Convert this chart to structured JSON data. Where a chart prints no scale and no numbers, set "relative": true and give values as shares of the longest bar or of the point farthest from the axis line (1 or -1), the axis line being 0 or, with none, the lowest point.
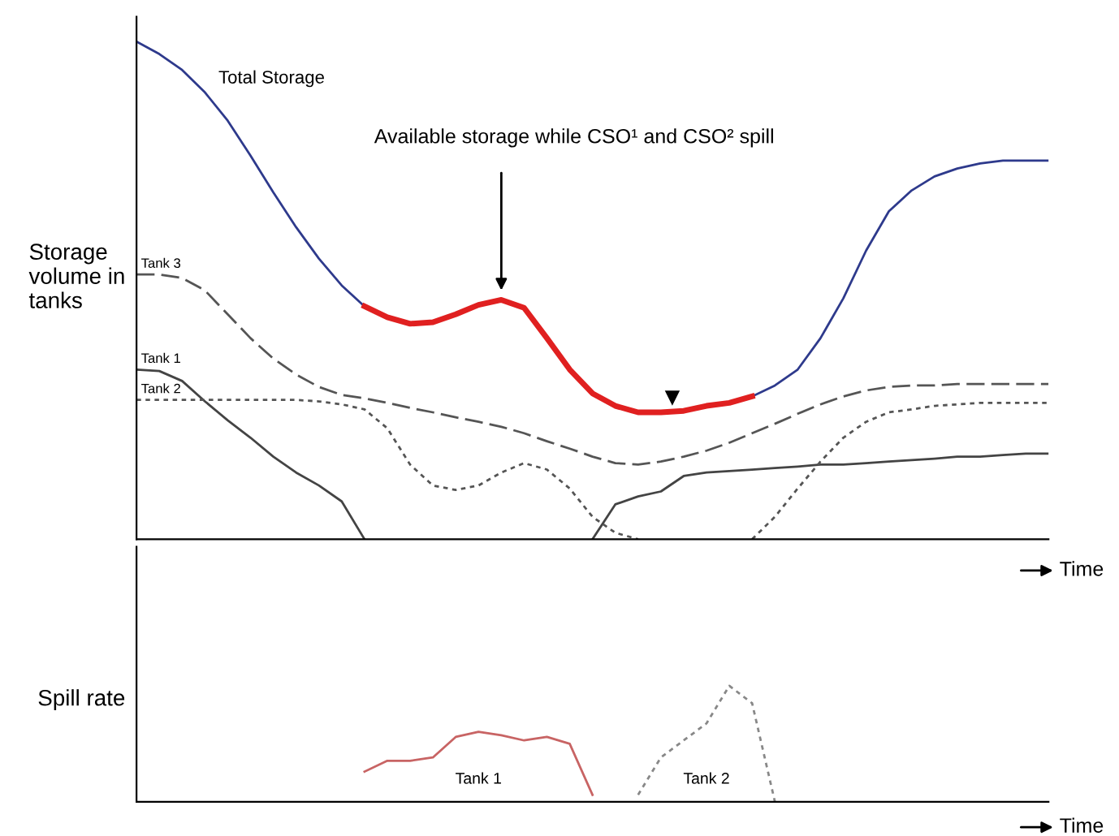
{
  "chart_data": [
    {
      "type": "line",
      "relative": true,
      "ylabel": "Storage volume in tanks",
      "xlabel": "Time",
      "legend": false,
      "grid": false,
      "annotations": [
        "Available storage while CSO¹ and CSO² spill"
      ],
      "categories": [
        null,
        null,
        null,
        null,
        null,
        null,
        null,
        null,
        null,
        null,
        null,
        null,
        null,
        null,
        null,
        null,
        null,
        null,
        null,
        null,
        null,
        null,
        null,
        null,
        null,
        null,
        null,
        null,
        null,
        null,
        null,
        null,
        null,
        null,
        null,
        null,
        null,
        null,
        null,
        null,
        null
      ],
      "series": [
        {
          "name": "Total Storage",
          "color": "#2e3a8c",
          "line_style": "solid",
          "values": [
            1.0,
            0.975,
            0.943,
            0.898,
            0.841,
            0.771,
            0.697,
            0.627,
            0.564,
            0.51,
            0.468,
            null,
            null,
            null,
            null,
            null,
            null,
            null,
            null,
            null,
            null,
            null,
            null,
            null,
            null,
            null,
            null,
            0.287,
            0.309,
            0.341,
            0.404,
            0.484,
            0.58,
            0.659,
            0.701,
            0.729,
            0.745,
            0.755,
            0.761,
            0.761,
            0.761
          ]
        },
        {
          "color": "#e02020",
          "line_style": "solid",
          "values": [
            null,
            null,
            null,
            null,
            null,
            null,
            null,
            null,
            null,
            null,
            0.468,
            0.446,
            0.433,
            0.436,
            0.452,
            0.471,
            0.481,
            0.465,
            0.404,
            0.341,
            0.293,
            0.268,
            0.255,
            0.255,
            0.258,
            0.268,
            0.274,
            0.287,
            null,
            null,
            null,
            null,
            null,
            null,
            null,
            null,
            null,
            null,
            null,
            null,
            null
          ]
        },
        {
          "name": "Tank 3",
          "color": "#555555",
          "line_style": "dashed",
          "values": [
            0.532,
            0.532,
            0.525,
            0.5,
            0.452,
            0.404,
            0.363,
            0.331,
            0.306,
            0.29,
            0.283,
            0.274,
            0.264,
            0.255,
            0.245,
            0.236,
            0.226,
            0.213,
            0.197,
            0.182,
            0.166,
            0.153,
            0.15,
            0.156,
            0.166,
            0.178,
            0.194,
            0.213,
            0.232,
            0.252,
            0.271,
            0.287,
            0.299,
            0.306,
            0.309,
            0.309,
            0.312,
            0.312,
            0.312,
            0.312,
            0.312
          ]
        },
        {
          "name": "Tank 1",
          "color": "#444444",
          "line_style": "solid",
          "values": [
            0.341,
            0.338,
            0.318,
            0.277,
            0.239,
            0.204,
            0.166,
            0.134,
            0.108,
            0.076,
            0.0,
            null,
            null,
            null,
            null,
            null,
            null,
            null,
            null,
            null,
            0.0,
            0.07,
            0.086,
            0.096,
            0.127,
            0.134,
            0.137,
            0.14,
            0.143,
            0.146,
            0.15,
            0.15,
            0.153,
            0.156,
            0.159,
            0.162,
            0.166,
            0.166,
            0.169,
            0.172,
            0.172
          ]
        },
        {
          "name": "Tank 2",
          "color": "#555555",
          "line_style": "dotted",
          "values": [
            0.28,
            0.28,
            0.28,
            0.28,
            0.28,
            0.28,
            0.28,
            0.28,
            0.277,
            0.271,
            0.261,
            0.223,
            0.15,
            0.108,
            0.099,
            0.108,
            0.134,
            0.153,
            0.14,
            0.102,
            0.045,
            0.013,
            0.0,
            null,
            null,
            null,
            null,
            0.0,
            0.045,
            0.102,
            0.156,
            0.204,
            0.236,
            0.255,
            0.261,
            0.268,
            0.271,
            0.274,
            0.274,
            0.274,
            0.274
          ]
        }
      ]
    },
    {
      "type": "line",
      "relative": true,
      "ylabel": "Spill rate",
      "xlabel": "Time",
      "legend": false,
      "grid": false,
      "categories": [
        null,
        null,
        null,
        null,
        null,
        null,
        null,
        null,
        null,
        null,
        null,
        null,
        null,
        null,
        null,
        null,
        null,
        null,
        null,
        null,
        null,
        null,
        null,
        null,
        null,
        null,
        null,
        null,
        null,
        null,
        null,
        null,
        null,
        null,
        null,
        null,
        null,
        null,
        null,
        null,
        null
      ],
      "series": [
        {
          "name": "Tank 1",
          "color": "#c86464",
          "line_style": "solid",
          "values": [
            null,
            null,
            null,
            null,
            null,
            null,
            null,
            null,
            null,
            null,
            0.26,
            0.353,
            0.353,
            0.382,
            0.559,
            0.603,
            0.574,
            0.529,
            0.559,
            0.5,
            0.059,
            null,
            null,
            null,
            null,
            null,
            null,
            null,
            null,
            null,
            null,
            null,
            null,
            null,
            null,
            null,
            null,
            null,
            null,
            null,
            null
          ]
        },
        {
          "name": "Tank 2",
          "color": "#888888",
          "line_style": "dotted",
          "values": [
            null,
            null,
            null,
            null,
            null,
            null,
            null,
            null,
            null,
            null,
            null,
            null,
            null,
            null,
            null,
            null,
            null,
            null,
            null,
            null,
            null,
            null,
            0.06,
            0.382,
            0.529,
            0.676,
            1.0,
            0.85,
            0.0,
            null,
            null,
            null,
            null,
            null,
            null,
            null,
            null,
            null,
            null,
            null,
            null
          ]
        }
      ]
    }
  ]
}
